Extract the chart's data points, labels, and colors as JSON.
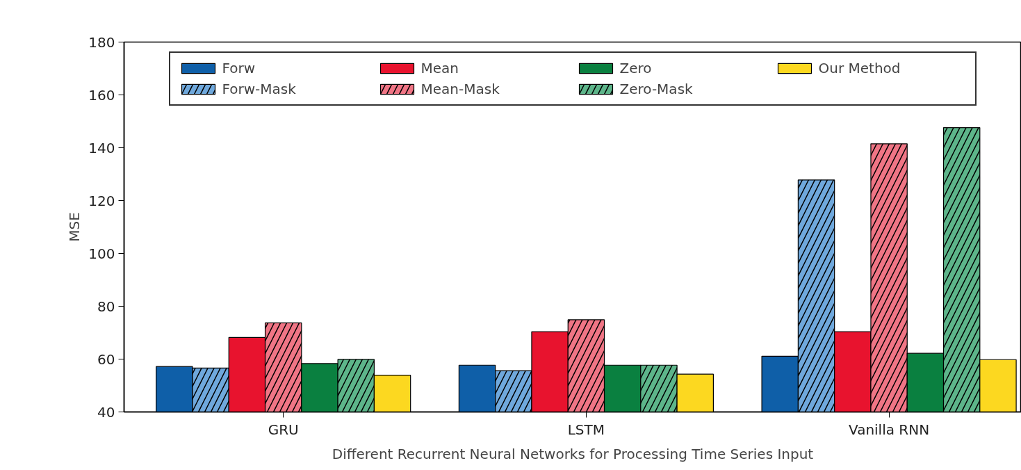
{
  "chart_data": {
    "type": "bar",
    "ylabel": "MSE",
    "xlabel": "Different Recurrent Neural Networks for Processing Time Series Input",
    "categories": [
      "GRU",
      "LSTM",
      "Vanilla RNN"
    ],
    "ylim": [
      40,
      180
    ],
    "yticks": [
      40,
      60,
      80,
      100,
      120,
      140,
      160,
      180
    ],
    "grid": false,
    "legend": "top",
    "series": [
      {
        "name": "Forw",
        "color": "#0f5fa8",
        "values": [
          57.2,
          57.7,
          61.1
        ]
      },
      {
        "name": "Forw-Mask",
        "color": "#6fa8dc",
        "values": [
          56.6,
          55.6,
          127.8
        ]
      },
      {
        "name": "Mean",
        "color": "#e8132e",
        "values": [
          68.2,
          70.4,
          70.4
        ]
      },
      {
        "name": "Mean-Mask",
        "color": "#f07585",
        "values": [
          73.7,
          74.9,
          141.5
        ]
      },
      {
        "name": "Zero",
        "color": "#0a8040",
        "values": [
          58.3,
          57.7,
          62.2
        ]
      },
      {
        "name": "Zero-Mask",
        "color": "#5db58a",
        "values": [
          59.9,
          57.7,
          147.6
        ]
      },
      {
        "name": "Our Method",
        "color": "#fcd820",
        "values": [
          53.9,
          54.3,
          59.8
        ]
      }
    ]
  }
}
